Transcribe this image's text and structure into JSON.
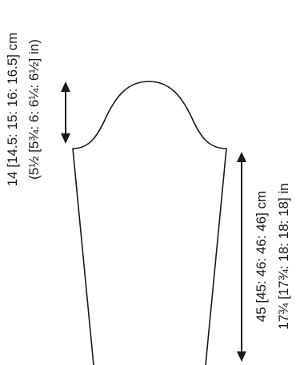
{
  "diagram": {
    "cap_height": {
      "cm": "14 [14.5: 15: 16: 16.5] cm",
      "in": "(5½ [5¾: 6: 6¼: 6½] in)"
    },
    "sleeve_length": {
      "cm": "45 [45: 46: 46: 46] cm",
      "in": "17¾ [17¾: 18: 18: 18] in"
    },
    "colors": {
      "line": "#1a1a1a",
      "background": "#ffffff"
    }
  }
}
